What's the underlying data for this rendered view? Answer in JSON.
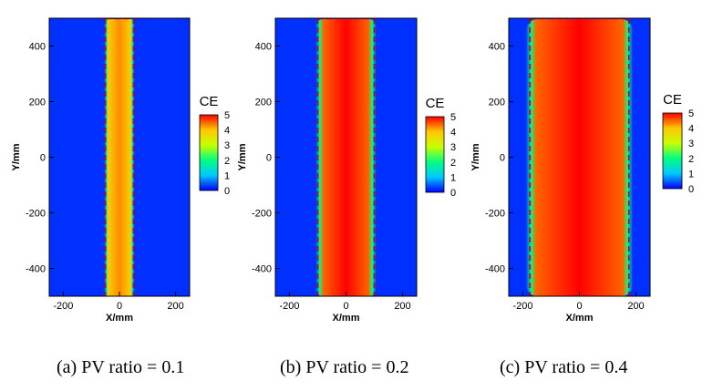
{
  "colormap": {
    "stops": [
      "#0000ff",
      "#00c8ff",
      "#00ff80",
      "#c8ff00",
      "#ffc800",
      "#ff0000"
    ],
    "background": "#0030ff",
    "dash_color": "#c80000"
  },
  "chart_data": [
    {
      "type": "heatmap",
      "id": "a",
      "caption": "(a) PV ratio = 0.1",
      "xlabel": "X/mm",
      "ylabel": "Y/mm",
      "xlim": [
        -250,
        250
      ],
      "ylim": [
        -500,
        500
      ],
      "xticks": [
        -200,
        0,
        200
      ],
      "yticks": [
        -400,
        -200,
        0,
        200,
        400
      ],
      "colorbar": {
        "label": "CE",
        "range": [
          0,
          5
        ],
        "ticks": [
          0,
          1,
          2,
          3,
          4,
          5
        ]
      },
      "band": {
        "x_range": [
          -50,
          50
        ],
        "y_range": [
          -500,
          500
        ],
        "peak_ce": 4.3,
        "edge_ce": 1.6
      },
      "dashed_boundary_x": [
        -50,
        50
      ]
    },
    {
      "type": "heatmap",
      "id": "b",
      "caption": "(b) PV ratio = 0.2",
      "xlabel": "X/mm",
      "ylabel": "Y/mm",
      "xlim": [
        -250,
        250
      ],
      "ylim": [
        -500,
        500
      ],
      "xticks": [
        -200,
        0,
        200
      ],
      "yticks": [
        -400,
        -200,
        0,
        200,
        400
      ],
      "colorbar": {
        "label": "CE",
        "range": [
          0,
          5
        ],
        "ticks": [
          0,
          1,
          2,
          3,
          4,
          5
        ]
      },
      "band": {
        "x_range": [
          -100,
          100
        ],
        "y_range": [
          -500,
          500
        ],
        "peak_ce": 5.0,
        "edge_ce": 2.0
      },
      "dashed_boundary_x": [
        -100,
        100
      ]
    },
    {
      "type": "heatmap",
      "id": "c",
      "caption": "(c) PV ratio = 0.4",
      "xlabel": "X/mm",
      "ylabel": "Y/mm",
      "xlim": [
        -250,
        250
      ],
      "ylim": [
        -500,
        500
      ],
      "xticks": [
        -200,
        0,
        200
      ],
      "yticks": [
        -400,
        -200,
        0,
        200,
        400
      ],
      "colorbar": {
        "label": "CE",
        "range": [
          0,
          5
        ],
        "ticks": [
          0,
          1,
          2,
          3,
          4,
          5
        ]
      },
      "band": {
        "x_range": [
          -180,
          180
        ],
        "y_range": [
          -500,
          500
        ],
        "peak_ce": 5.0,
        "edge_ce": 2.0
      },
      "dashed_boundary_x": [
        -175,
        175
      ]
    }
  ]
}
